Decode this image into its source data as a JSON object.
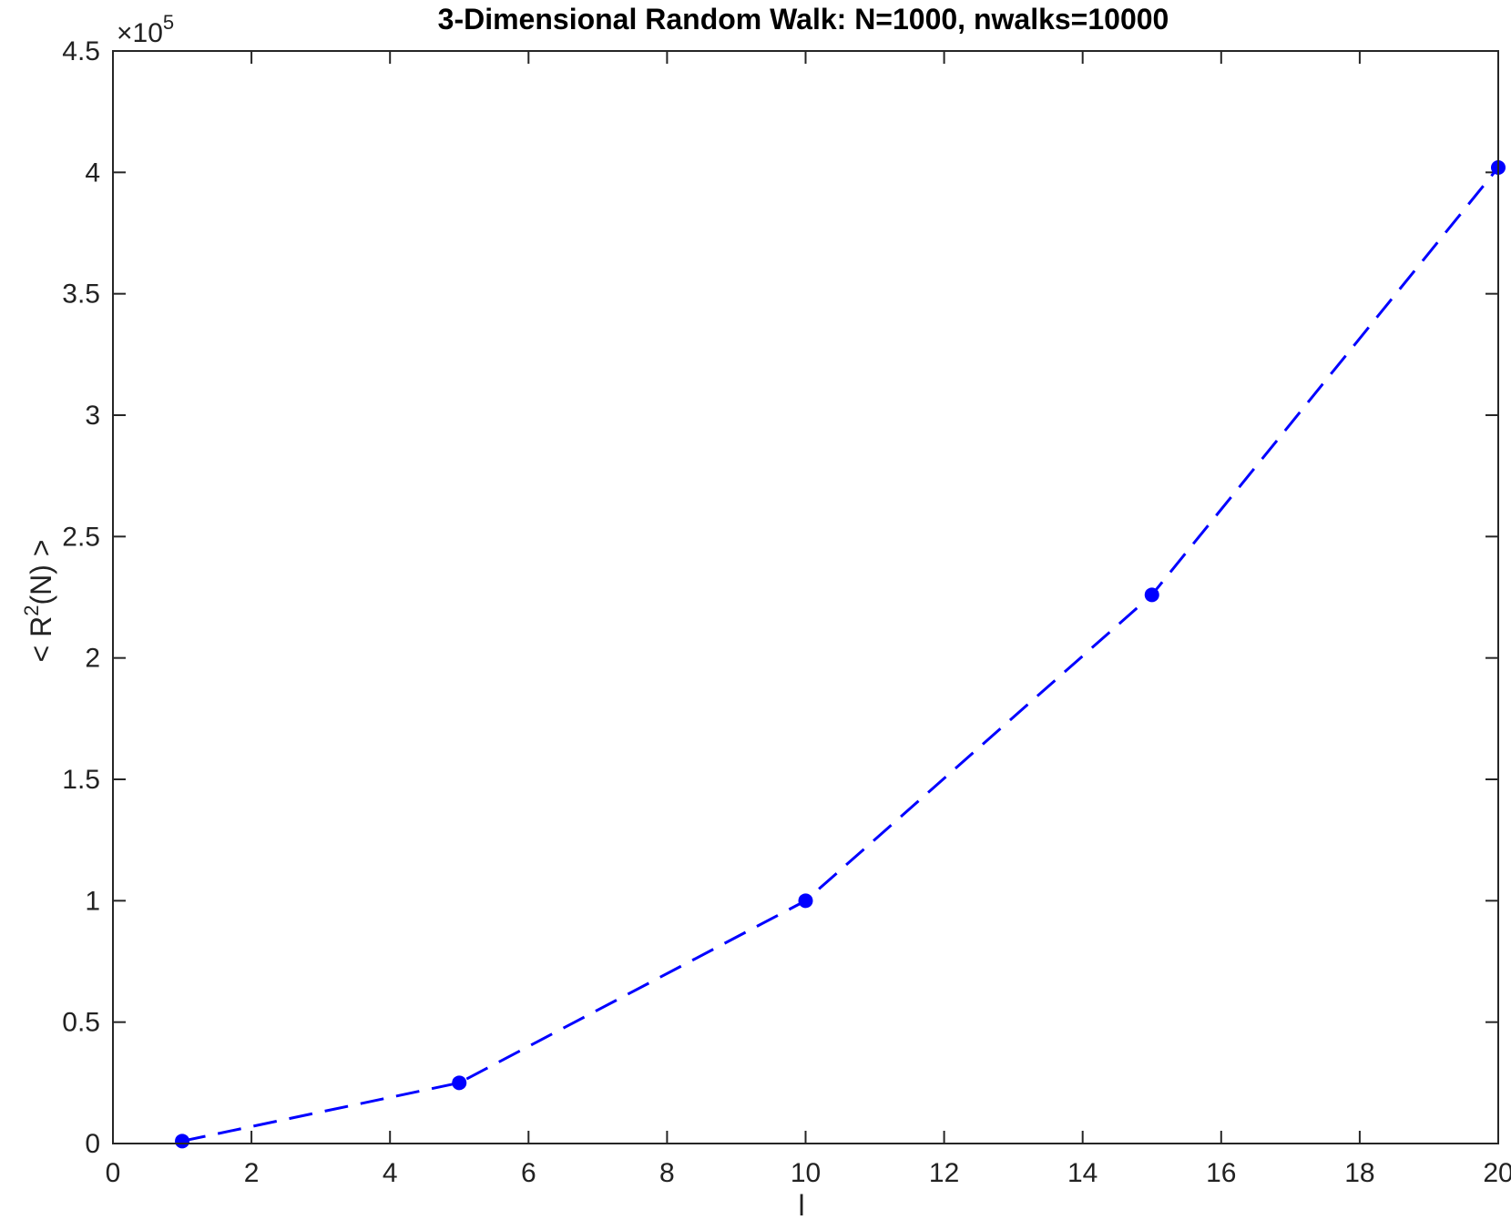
{
  "chart_data": {
    "type": "line",
    "title": "3-Dimensional Random Walk: N=1000, nwalks=10000",
    "xlabel": "l",
    "ylabel_prefix": "< R",
    "ylabel_superscript": "2",
    "ylabel_suffix": "(N) >",
    "y_exponent_prefix": "×10",
    "y_exponent_power": "5",
    "xlim": [
      0,
      20
    ],
    "ylim": [
      0,
      4.5
    ],
    "xticks": [
      0,
      2,
      4,
      6,
      8,
      10,
      12,
      14,
      16,
      18,
      20
    ],
    "yticks": [
      0,
      0.5,
      1,
      1.5,
      2,
      2.5,
      3,
      3.5,
      4,
      4.5
    ],
    "x_tick_labels": [
      "0",
      "2",
      "4",
      "6",
      "8",
      "10",
      "12",
      "14",
      "16",
      "18",
      "20"
    ],
    "y_tick_labels": [
      "0",
      "0.5",
      "1",
      "1.5",
      "2",
      "2.5",
      "3",
      "3.5",
      "4",
      "4.5"
    ],
    "grid": false,
    "line_color": "#0000ff",
    "line_style": "dashed",
    "marker": "circle",
    "series": [
      {
        "x": [
          1,
          5,
          10,
          15,
          20
        ],
        "y": [
          0.01,
          0.25,
          1.0,
          2.26,
          4.02
        ]
      }
    ]
  }
}
